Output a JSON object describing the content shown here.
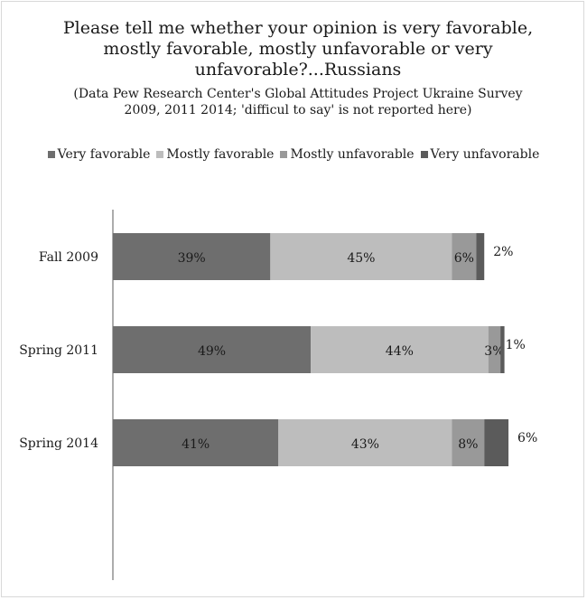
{
  "chart_data": {
    "type": "bar",
    "orientation": "horizontal",
    "stacked": true,
    "title": "Please tell me whether your opinion is very favorable, mostly favorable, mostly unfavorable or very unfavorable?...Russians",
    "subtitle": "(Data  Pew Research Center's Global Attitudes Project Ukraine Survey 2009, 2011 2014; 'difficul to say' is not reported here)",
    "categories": [
      "Fall 2009",
      "Spring 2011",
      "Spring 2014"
    ],
    "series": [
      {
        "name": "Very favorable",
        "color": "#6e6e6e",
        "values": [
          39,
          49,
          41
        ],
        "labels": [
          "39%",
          "49%",
          "41%"
        ]
      },
      {
        "name": "Mostly favorable",
        "color": "#bdbdbd",
        "values": [
          45,
          44,
          43
        ],
        "labels": [
          "45%",
          "44%",
          "43%"
        ]
      },
      {
        "name": "Mostly unfavorable",
        "color": "#999999",
        "values": [
          6,
          3,
          8
        ],
        "labels": [
          "6%",
          "3%",
          "8%"
        ]
      },
      {
        "name": "Very unfavorable",
        "color": "#5b5b5b",
        "values": [
          2,
          1,
          6
        ],
        "labels": [
          "2%",
          "1%",
          "6%"
        ]
      }
    ],
    "xlim": [
      0,
      100
    ],
    "grid": false,
    "legend_position": "top"
  }
}
